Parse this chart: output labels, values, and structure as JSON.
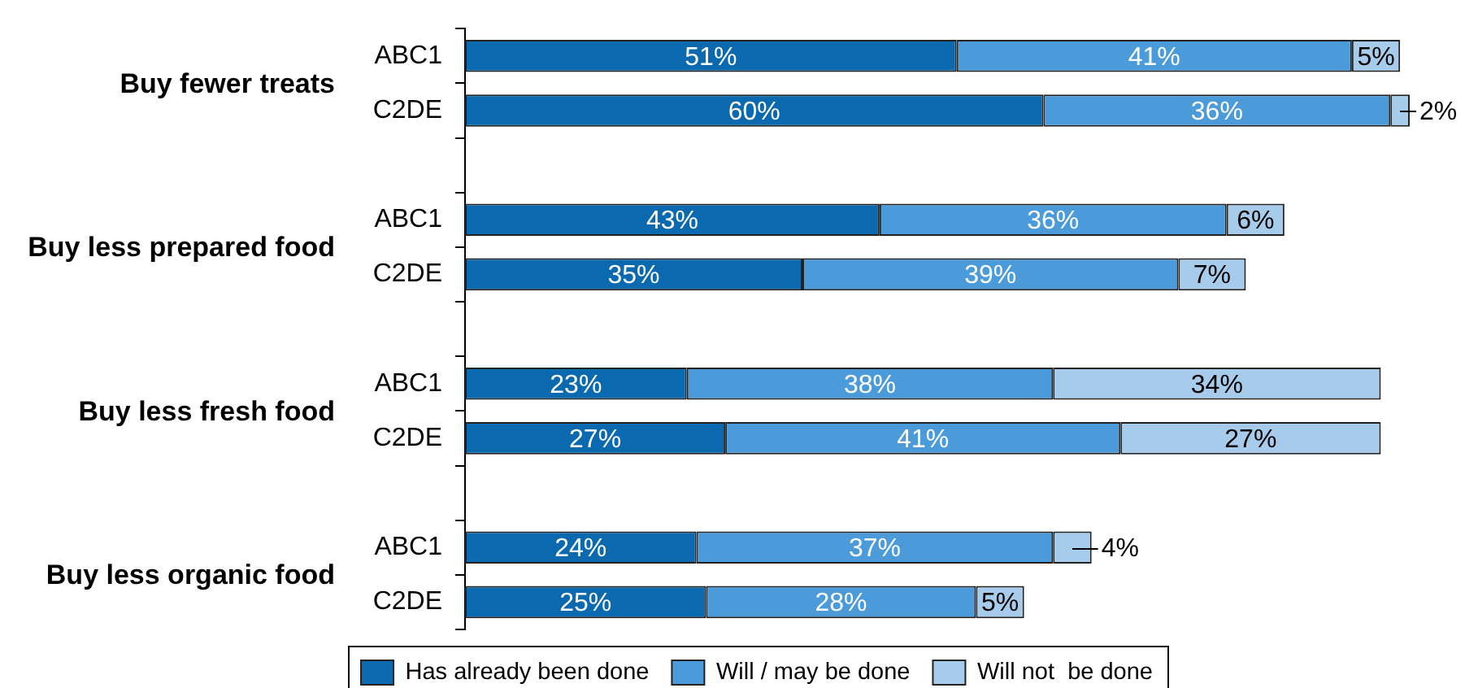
{
  "chart_data": {
    "type": "bar",
    "orientation": "horizontal",
    "stacked": true,
    "categories": [
      "ABC1",
      "C2DE",
      null,
      "ABC1",
      "C2DE",
      null,
      "ABC1",
      "C2DE",
      null,
      "ABC1",
      "C2DE"
    ],
    "series": [
      {
        "name": "Has already been done",
        "color": "#0b6aaf",
        "values": [
          51,
          60,
          null,
          43,
          35,
          null,
          23,
          27,
          null,
          24,
          25
        ],
        "value_labels": [
          "51%",
          "60%",
          null,
          "43%",
          "35%",
          null,
          "23%",
          "27%",
          null,
          "24%",
          "25%"
        ]
      },
      {
        "name": "Will / may be done",
        "color": "#4b9bdb",
        "values": [
          41,
          36,
          null,
          36,
          39,
          null,
          38,
          41,
          null,
          37,
          28
        ],
        "value_labels": [
          "41%",
          "36%",
          null,
          "36%",
          "39%",
          null,
          "38%",
          "41%",
          null,
          "37%",
          "28%"
        ]
      },
      {
        "name": "Will not  be done",
        "color": "#a6cbeb",
        "values": [
          5,
          2,
          null,
          6,
          7,
          null,
          34,
          27,
          null,
          4,
          5
        ],
        "value_labels": [
          "5%",
          "2%",
          null,
          "6%",
          "7%",
          null,
          "34%",
          "27%",
          null,
          "4%",
          "5%"
        ]
      }
    ],
    "annotations": [
      "Buy fewer treats",
      "Buy less prepared food",
      "Buy less fresh food",
      "Buy less organic food"
    ],
    "legend": "bottom",
    "grid": false
  }
}
